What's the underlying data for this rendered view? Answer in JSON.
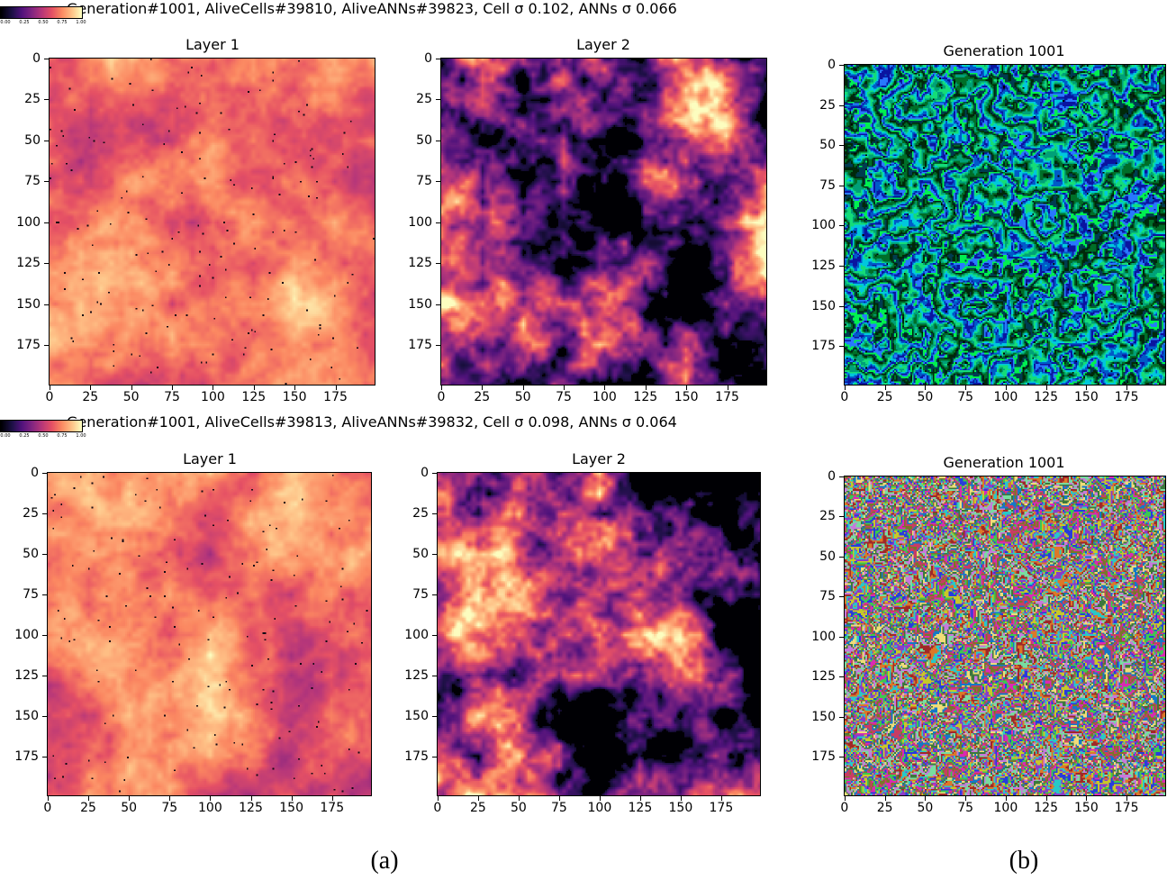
{
  "rows": [
    {
      "suptitle": "Generation#1001, AliveCells#39810, AliveANNs#39823, Cell σ 0.102, ANNs σ  0.066",
      "colorbar": {
        "ticks": [
          "0.00",
          "0.25",
          "0.50",
          "0.75",
          "1.00"
        ]
      },
      "panels": [
        {
          "title": "Layer 1",
          "colormap": "magma",
          "profile": "high"
        },
        {
          "title": "Layer 2",
          "colormap": "magma",
          "profile": "mixed"
        },
        {
          "title": "Generation 1001",
          "colormap": "cluster-blue-green",
          "profile": "clusters"
        }
      ]
    },
    {
      "suptitle": "Generation#1001, AliveCells#39813, AliveANNs#39832, Cell σ 0.098, ANNs σ  0.064",
      "colorbar": {
        "ticks": [
          "0.00",
          "0.25",
          "0.50",
          "0.75",
          "1.00"
        ]
      },
      "panels": [
        {
          "title": "Layer 1",
          "colormap": "magma",
          "profile": "high"
        },
        {
          "title": "Layer 2",
          "colormap": "magma",
          "profile": "mixed"
        },
        {
          "title": "Generation 1001",
          "colormap": "cluster-multicolor",
          "profile": "clusters"
        }
      ]
    }
  ],
  "captions": [
    "(a)",
    "(b)"
  ],
  "chart_data": {
    "type": "heatmap",
    "grid_size": [
      200,
      200
    ],
    "xlim": [
      0,
      199
    ],
    "ylim": [
      199,
      0
    ],
    "x_ticks": [
      "0",
      "25",
      "50",
      "75",
      "100",
      "125",
      "150",
      "175"
    ],
    "y_ticks": [
      "0",
      "25",
      "50",
      "75",
      "100",
      "125",
      "150",
      "175"
    ],
    "value_range": [
      0,
      1
    ],
    "legend": "colorbar top-left"
  }
}
